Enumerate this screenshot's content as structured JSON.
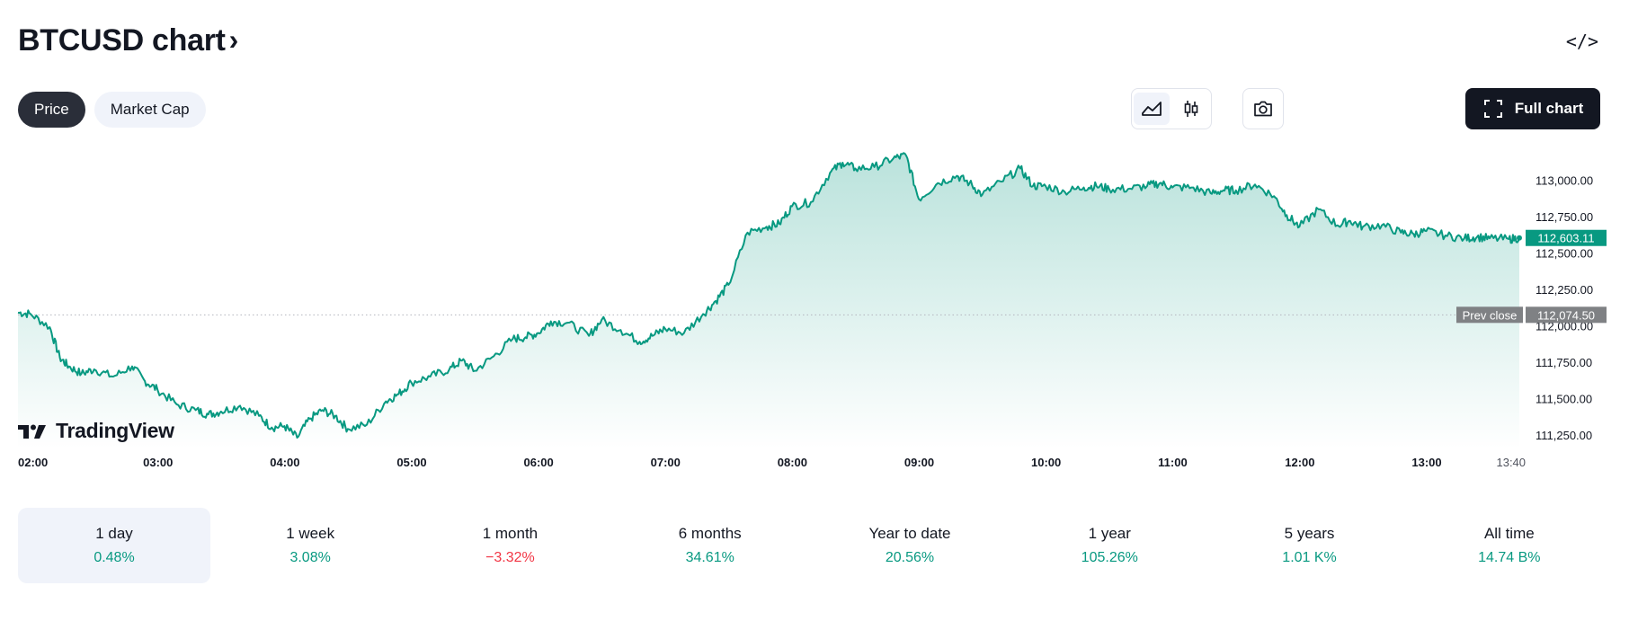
{
  "header": {
    "title": "BTCUSD chart",
    "title_chevron": "›",
    "embed_label": "</>"
  },
  "tabs": [
    {
      "label": "Price",
      "active": true
    },
    {
      "label": "Market Cap",
      "active": false
    }
  ],
  "toolbar": {
    "full_chart_label": "Full chart"
  },
  "brand": {
    "logo_text": "TradingView"
  },
  "periods": [
    {
      "label": "1 day",
      "value": "0.48%",
      "positive": true,
      "selected": true
    },
    {
      "label": "1 week",
      "value": "3.08%",
      "positive": true,
      "selected": false
    },
    {
      "label": "1 month",
      "value": "−3.32%",
      "positive": false,
      "selected": false
    },
    {
      "label": "6 months",
      "value": "34.61%",
      "positive": true,
      "selected": false
    },
    {
      "label": "Year to date",
      "value": "20.56%",
      "positive": true,
      "selected": false
    },
    {
      "label": "1 year",
      "value": "105.26%",
      "positive": true,
      "selected": false
    },
    {
      "label": "5 years",
      "value": "1.01 K%",
      "positive": true,
      "selected": false
    },
    {
      "label": "All time",
      "value": "14.74 B%",
      "positive": true,
      "selected": false
    }
  ],
  "colors": {
    "line": "#089981",
    "fill": "#089981",
    "positive": "#089981",
    "negative": "#f23645",
    "prev_close_tag": "#7f8184",
    "last_price_tag": "#089981",
    "dark": "#131722"
  },
  "chart_data": {
    "type": "area",
    "symbol": "BTCUSD",
    "ylim": [
      111150,
      113250
    ],
    "y_ticks": [
      113000,
      112750,
      112500,
      112250,
      112000,
      111750,
      111500,
      111250
    ],
    "y_tick_labels": [
      "113,000.00",
      "112,750.00",
      "112,500.00",
      "112,250.00",
      "112,000.00",
      "111,750.00",
      "111,500.00",
      "111,250.00"
    ],
    "x_range_hours": [
      2.0,
      13.8333
    ],
    "x_ticks": [
      2,
      3,
      4,
      5,
      6,
      7,
      8,
      9,
      10,
      11,
      12,
      13,
      13.6667
    ],
    "x_tick_labels": [
      "02:00",
      "03:00",
      "04:00",
      "05:00",
      "06:00",
      "07:00",
      "08:00",
      "09:00",
      "10:00",
      "11:00",
      "12:00",
      "13:00",
      "13:40"
    ],
    "prev_close": {
      "label": "Prev close",
      "value": 112074.5,
      "value_label": "112,074.50"
    },
    "last_price": {
      "value": 112603.11,
      "value_label": "112,603.11"
    },
    "series": [
      {
        "name": "BTCUSD",
        "x": [
          2.0,
          2.1,
          2.25,
          2.33,
          2.4,
          2.5,
          2.6,
          2.75,
          2.9,
          3.0,
          3.1,
          3.25,
          3.4,
          3.5,
          3.6,
          3.75,
          3.9,
          4.0,
          4.1,
          4.2,
          4.3,
          4.4,
          4.5,
          4.6,
          4.75,
          4.9,
          5.0,
          5.1,
          5.25,
          5.4,
          5.5,
          5.6,
          5.75,
          5.9,
          6.0,
          6.1,
          6.2,
          6.33,
          6.5,
          6.6,
          6.75,
          6.9,
          7.0,
          7.1,
          7.25,
          7.4,
          7.5,
          7.6,
          7.75,
          7.9,
          8.0,
          8.1,
          8.25,
          8.4,
          8.5,
          8.6,
          8.75,
          8.9,
          9.0,
          9.1,
          9.25,
          9.4,
          9.5,
          9.6,
          9.75,
          9.9,
          10.0,
          10.1,
          10.25,
          10.4,
          10.5,
          10.6,
          10.75,
          10.9,
          11.0,
          11.1,
          11.25,
          11.4,
          11.5,
          11.6,
          11.75,
          11.9,
          12.0,
          12.1,
          12.25,
          12.4,
          12.5,
          12.6,
          12.75,
          12.9,
          13.0,
          13.1,
          13.25,
          13.4,
          13.5,
          13.6,
          13.75,
          13.8333
        ],
        "y": [
          112090,
          112080,
          111990,
          111780,
          111720,
          111670,
          111700,
          111650,
          111720,
          111620,
          111560,
          111460,
          111420,
          111390,
          111410,
          111450,
          111380,
          111300,
          111310,
          111230,
          111360,
          111420,
          111380,
          111290,
          111320,
          111480,
          111530,
          111610,
          111650,
          111700,
          111760,
          111690,
          111790,
          111910,
          111920,
          111950,
          112030,
          112020,
          111930,
          112040,
          111970,
          111890,
          111930,
          111980,
          111950,
          112080,
          112170,
          112280,
          112640,
          112680,
          112700,
          112820,
          112850,
          113050,
          113120,
          113080,
          113090,
          113150,
          113170,
          112870,
          112980,
          113030,
          112980,
          112900,
          112990,
          113080,
          112960,
          112960,
          112920,
          112950,
          112960,
          112940,
          112940,
          112960,
          112980,
          112950,
          112950,
          112910,
          112930,
          112930,
          112970,
          112890,
          112760,
          112680,
          112800,
          112690,
          112720,
          112680,
          112690,
          112640,
          112630,
          112650,
          112620,
          112600,
          112610,
          112600,
          112595,
          112603.11
        ]
      }
    ]
  }
}
